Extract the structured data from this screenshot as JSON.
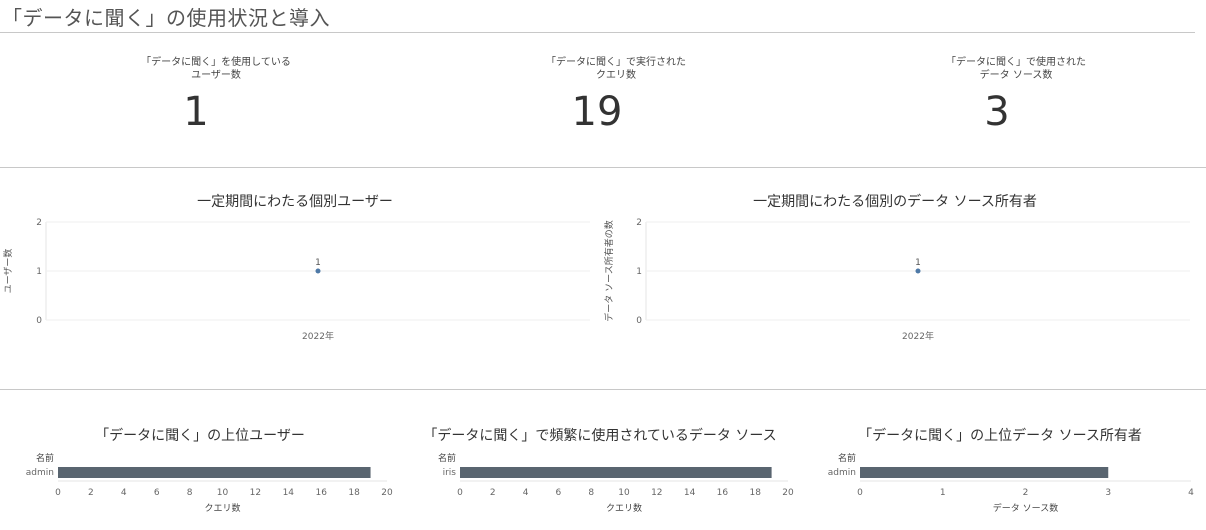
{
  "page": {
    "title": "「データに聞く」の使用状況と導入"
  },
  "kpis": [
    {
      "label_line1": "「データに聞く」を使用している",
      "label_line2": "ユーザー数",
      "value": "1"
    },
    {
      "label_line1": "「データに聞く」で実行された",
      "label_line2": "クエリ数",
      "value": "19"
    },
    {
      "label_line1": "「データに聞く」で使用された",
      "label_line2": "データ ソース数",
      "value": "3"
    }
  ],
  "chart_data": [
    {
      "type": "scatter",
      "title": "一定期間にわたる個別ユーザー",
      "xlabel": "",
      "ylabel": "ユーザー数",
      "categories": [
        "2022年"
      ],
      "values": [
        1
      ],
      "data_labels": [
        "1"
      ],
      "yticks": [
        "0",
        "1",
        "2"
      ],
      "ylim": [
        0,
        2
      ],
      "grid": true,
      "color": "#4e79a7"
    },
    {
      "type": "scatter",
      "title": "一定期間にわたる個別のデータ ソース所有者",
      "xlabel": "",
      "ylabel": "データ ソース所有者の数",
      "categories": [
        "2022年"
      ],
      "values": [
        1
      ],
      "data_labels": [
        "1"
      ],
      "yticks": [
        "0",
        "1",
        "2"
      ],
      "ylim": [
        0,
        2
      ],
      "grid": true,
      "color": "#4e79a7"
    },
    {
      "type": "bar",
      "title": "「データに聞く」の上位ユーザー",
      "row_header": "名前",
      "xlabel": "クエリ数",
      "categories": [
        "admin"
      ],
      "values": [
        19
      ],
      "xticks": [
        "0",
        "2",
        "4",
        "6",
        "8",
        "10",
        "12",
        "14",
        "16",
        "18",
        "20"
      ],
      "xlim": [
        0,
        20
      ],
      "color": "#596570"
    },
    {
      "type": "bar",
      "title": "「データに聞く」で頻繁に使用されているデータ ソース",
      "row_header": "名前",
      "xlabel": "クエリ数",
      "categories": [
        "iris"
      ],
      "values": [
        19
      ],
      "xticks": [
        "0",
        "2",
        "4",
        "6",
        "8",
        "10",
        "12",
        "14",
        "16",
        "18",
        "20"
      ],
      "xlim": [
        0,
        20
      ],
      "color": "#596570"
    },
    {
      "type": "bar",
      "title": "「データに聞く」の上位データ ソース所有者",
      "row_header": "名前",
      "xlabel": "データ ソース数",
      "categories": [
        "admin"
      ],
      "values": [
        3
      ],
      "xticks": [
        "0",
        "1",
        "2",
        "3",
        "4"
      ],
      "xlim": [
        0,
        4
      ],
      "color": "#596570"
    }
  ]
}
